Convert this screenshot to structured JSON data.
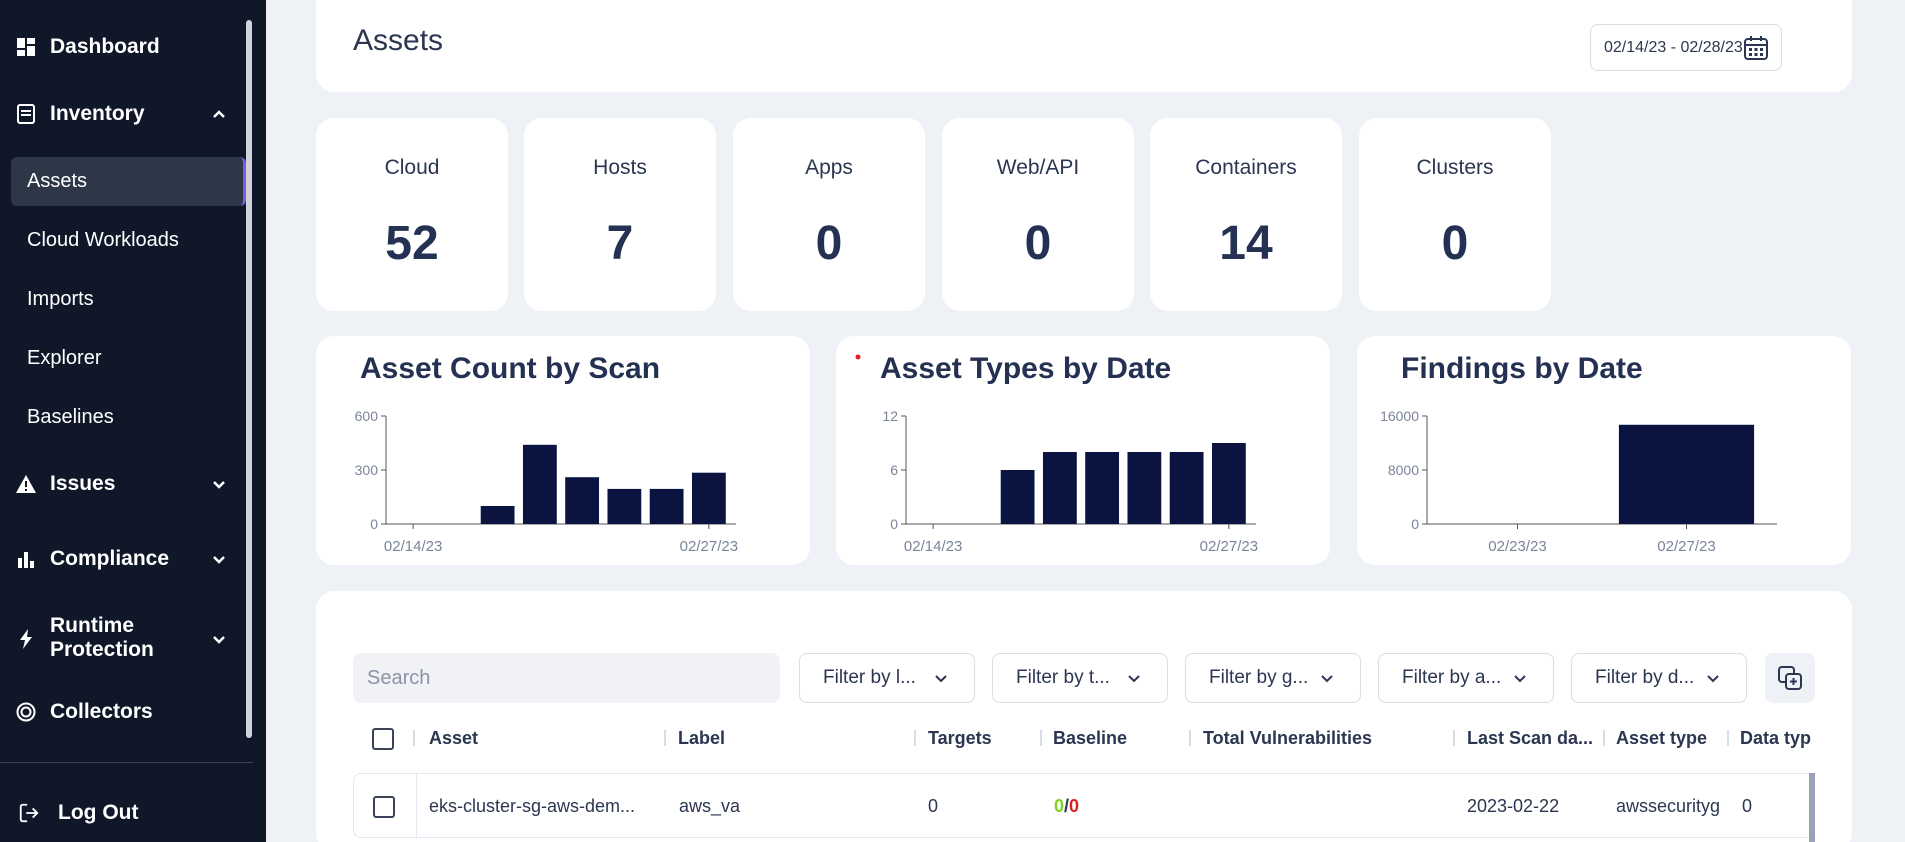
{
  "sidebar": {
    "items": [
      {
        "label": "Dashboard"
      },
      {
        "label": "Inventory"
      },
      {
        "label": "Issues"
      },
      {
        "label": "Compliance"
      },
      {
        "label": "Runtime Protection"
      },
      {
        "label": "Collectors"
      }
    ],
    "runtime_line1": "Runtime",
    "runtime_line2": "Protection",
    "sub_items": [
      "Assets",
      "Cloud Workloads",
      "Imports",
      "Explorer",
      "Baselines"
    ],
    "logout": "Log Out"
  },
  "header": {
    "title": "Assets",
    "date_range": "02/14/23 - 02/28/23"
  },
  "stats": [
    {
      "label": "Cloud",
      "value": "52"
    },
    {
      "label": "Hosts",
      "value": "7"
    },
    {
      "label": "Apps",
      "value": "0"
    },
    {
      "label": "Web/API",
      "value": "0"
    },
    {
      "label": "Containers",
      "value": "14"
    },
    {
      "label": "Clusters",
      "value": "0"
    }
  ],
  "chart_data": [
    {
      "type": "bar",
      "title": "Asset Count by Scan",
      "x_ticks": [
        "02/14/23",
        "02/27/23"
      ],
      "y_ticks": [
        "0",
        "300",
        "600"
      ],
      "ylim": [
        0,
        600
      ],
      "values": [
        0,
        0,
        100,
        440,
        260,
        195,
        195,
        285
      ]
    },
    {
      "type": "bar",
      "title": "Asset Types by Date",
      "x_ticks": [
        "02/14/23",
        "02/27/23"
      ],
      "y_ticks": [
        "0",
        "6",
        "12"
      ],
      "ylim": [
        0,
        12
      ],
      "values": [
        0,
        0,
        6,
        8,
        8,
        8,
        8,
        9
      ]
    },
    {
      "type": "bar",
      "title": "Findings by Date",
      "x_ticks": [
        "02/23/23",
        "02/27/23"
      ],
      "y_ticks": [
        "0",
        "8000",
        "16000"
      ],
      "ylim": [
        0,
        16000
      ],
      "values": [
        0,
        14700
      ]
    }
  ],
  "table": {
    "search_placeholder": "Search",
    "filters": [
      "Filter by l...",
      "Filter by t...",
      "Filter by g...",
      "Filter by a...",
      "Filter by d..."
    ],
    "columns": [
      "Asset",
      "Label",
      "Targets",
      "Baseline",
      "Total Vulnerabilities",
      "Last Scan da...",
      "Asset type",
      "Data typ"
    ],
    "rows": [
      {
        "asset": "eks-cluster-sg-aws-dem...",
        "label": "aws_va",
        "targets": "0",
        "baseline_a": "0",
        "baseline_sep": "/",
        "baseline_b": "0",
        "total_vulns": "",
        "last_scan": "2023-02-22",
        "asset_type": "awssecurityg",
        "data_type": "0"
      }
    ]
  },
  "colors": {
    "sidebar_bg": "#0f1729",
    "bar": "#0b1440",
    "baseline_green": "#7ed321",
    "baseline_red": "#e02020"
  }
}
